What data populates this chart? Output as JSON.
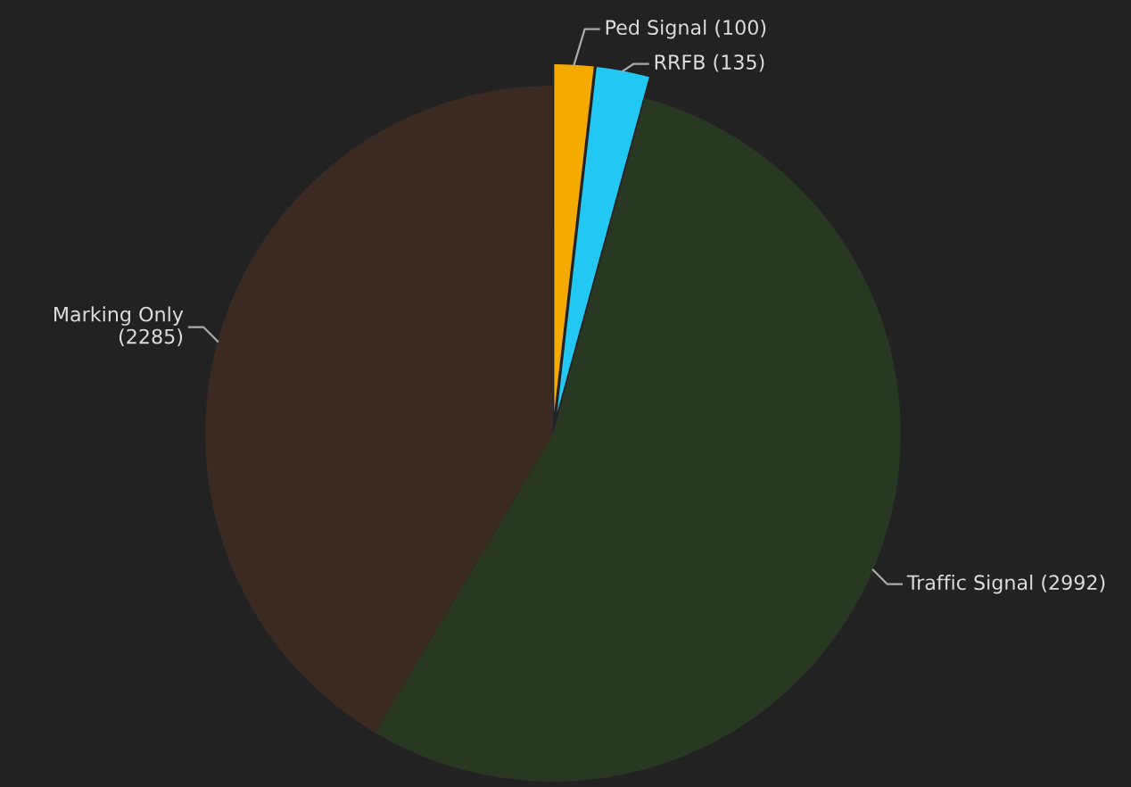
{
  "chart_data": {
    "type": "pie",
    "categories": [
      "Ped Signal",
      "RRFB",
      "Traffic Signal",
      "Marking Only"
    ],
    "values": [
      100,
      135,
      2992,
      2285
    ],
    "colors": [
      "#f5aa00",
      "#22c8f2",
      "#283823",
      "#3a2a21"
    ],
    "value_labels": [
      "(100)",
      "(135)",
      "(2992)",
      "(2285)"
    ]
  }
}
